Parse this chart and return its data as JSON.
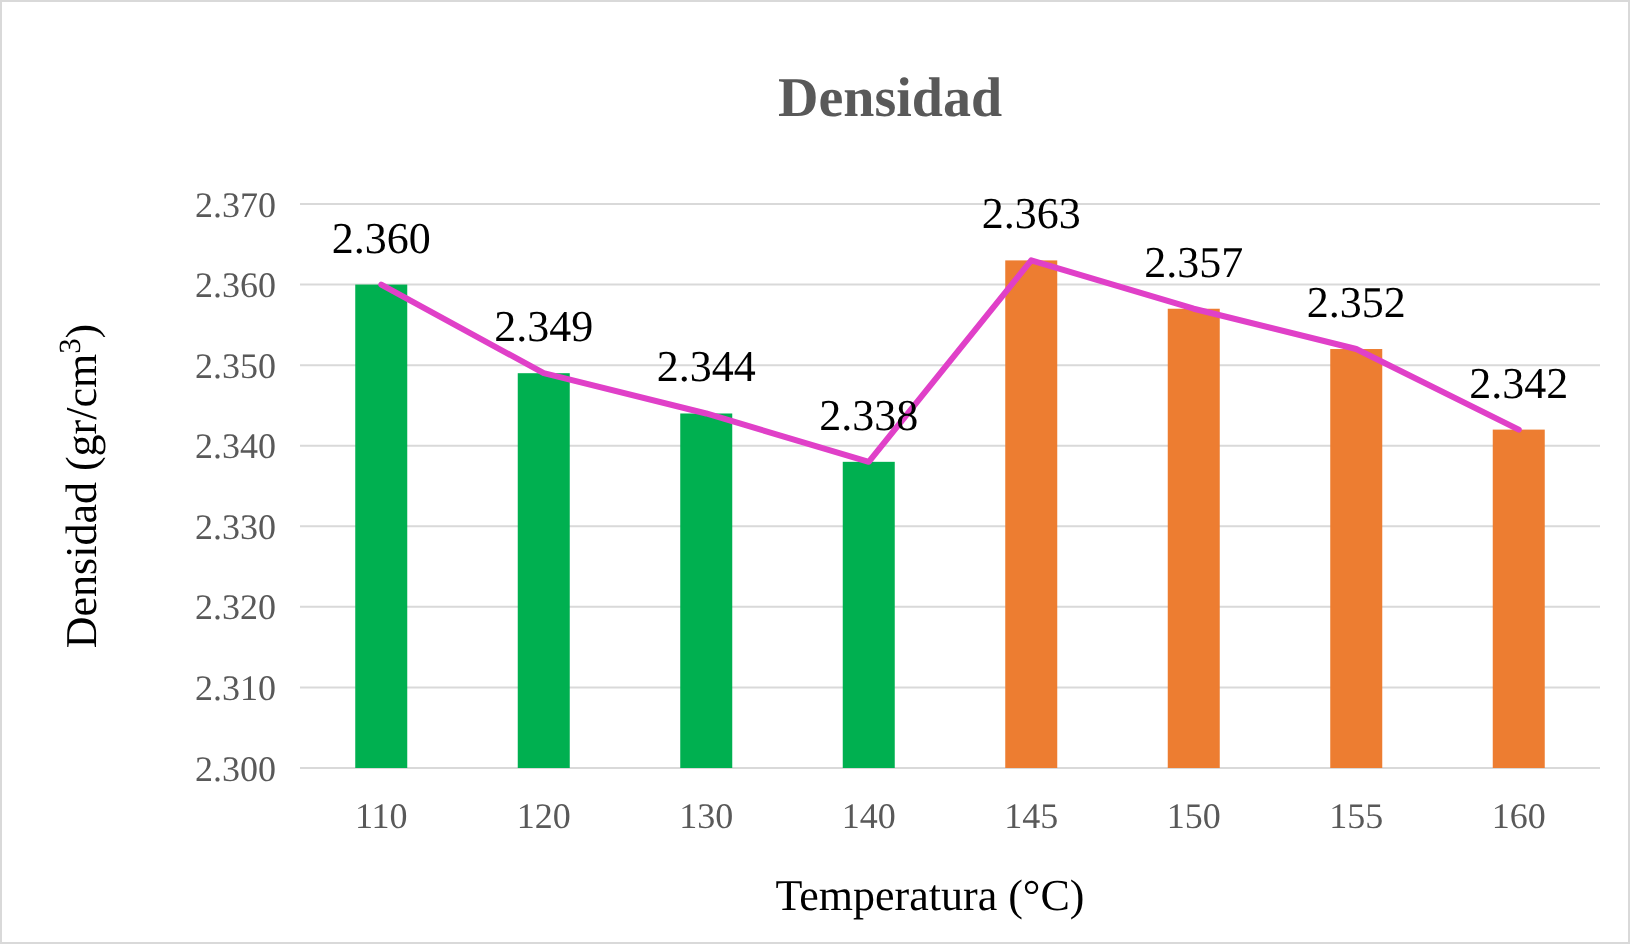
{
  "chart_data": {
    "type": "bar",
    "title": "Densidad",
    "xlabel": "Temperatura (°C)",
    "ylabel": "Densidad (gr/cm$^{3}$)",
    "categories": [
      "110",
      "120",
      "130",
      "140",
      "145",
      "150",
      "155",
      "160"
    ],
    "series": [
      {
        "values": [
          2.36,
          2.349,
          2.344,
          2.338,
          2.363,
          2.357,
          2.352,
          2.342
        ],
        "colors": [
          "#00b050",
          "#00b050",
          "#00b050",
          "#00b050",
          "#ed7d31",
          "#ed7d31",
          "#ed7d31",
          "#ed7d31"
        ]
      },
      {
        "type": "line",
        "color": "#e040c8",
        "values": [
          2.36,
          2.349,
          2.344,
          2.338,
          2.363,
          2.357,
          2.352,
          2.342
        ],
        "value_labels": [
          "2.360",
          "2.349",
          "2.344",
          "2.338",
          "2.363",
          "2.357",
          "2.352",
          "2.342"
        ]
      }
    ],
    "ylim": [
      2.3,
      2.37
    ],
    "yticks": [
      {
        "value": 2.3,
        "label": "2.300"
      },
      {
        "value": 2.31,
        "label": "2.310"
      },
      {
        "value": 2.32,
        "label": "2.320"
      },
      {
        "value": 2.33,
        "label": "2.330"
      },
      {
        "value": 2.34,
        "label": "2.340"
      },
      {
        "value": 2.35,
        "label": "2.350"
      },
      {
        "value": 2.36,
        "label": "2.360"
      },
      {
        "value": 2.37,
        "label": "2.370"
      }
    ],
    "grid": "y",
    "marker": "none",
    "line_style": "solid"
  }
}
